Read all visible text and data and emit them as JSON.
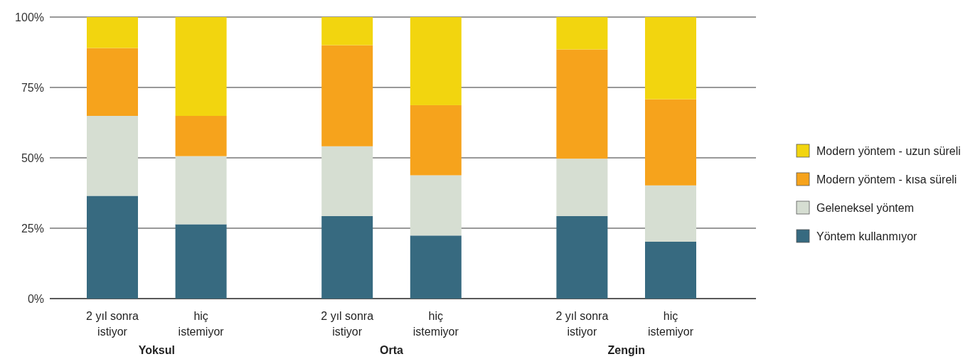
{
  "chart_data": {
    "type": "bar",
    "stacked": true,
    "categories": [
      "2 yıl sonra istiyor",
      "hiç istemiyor",
      "2 yıl sonra istiyor",
      "hiç istemiyor",
      "2 yıl sonra istiyor",
      "hiç istemiyor"
    ],
    "series": [
      {
        "name": "Yöntem kullanmıyor",
        "color": "#376a80",
        "values": [
          36.5,
          26.4,
          29.3,
          22.4,
          29.3,
          20.2
        ]
      },
      {
        "name": "Geleneksel yöntem",
        "color": "#d6ded2",
        "values": [
          28.4,
          24.2,
          24.8,
          21.4,
          20.4,
          20.0
        ]
      },
      {
        "name": "Modern yöntem - kısa süreli",
        "color": "#f6a31c",
        "values": [
          24.1,
          14.3,
          35.9,
          24.9,
          38.8,
          30.6
        ]
      },
      {
        "name": "Modern yöntem - uzun süreli",
        "color": "#f2d50f",
        "values": [
          11.0,
          35.1,
          10.0,
          31.3,
          11.5,
          29.2
        ]
      }
    ],
    "ylim": [
      0,
      100
    ],
    "yticks": [
      {
        "value": 0,
        "label": "0%"
      },
      {
        "value": 25,
        "label": "25%"
      },
      {
        "value": 50,
        "label": "50%"
      },
      {
        "value": 75,
        "label": "75%"
      },
      {
        "value": 100,
        "label": "100%"
      }
    ],
    "grid": "y",
    "legend": "right",
    "annotations": [
      "Yoksul",
      "Orta",
      "Zengin"
    ]
  }
}
